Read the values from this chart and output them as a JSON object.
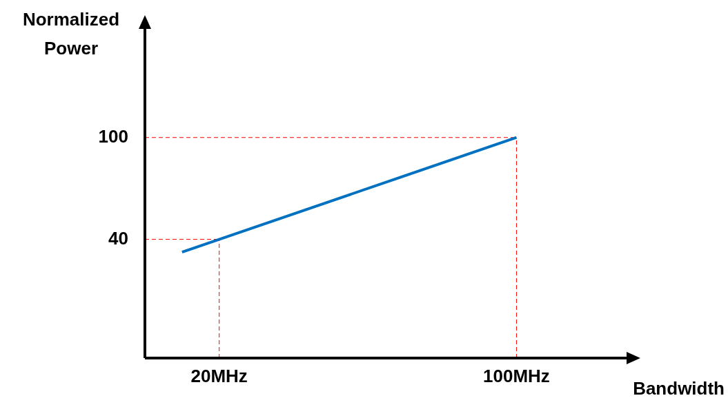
{
  "chart_data": {
    "type": "line",
    "xlabel": "Bandwidth",
    "ylabel": "Normalized Power",
    "x": [
      10,
      20,
      100
    ],
    "series": [
      {
        "color": "#0070c0",
        "values": [
          32.5,
          40,
          100
        ]
      }
    ],
    "xlim": [
      0,
      130
    ],
    "ylim": [
      -30,
      165
    ],
    "xticks": [
      {
        "value": 20,
        "label": "20MHz"
      },
      {
        "value": 100,
        "label": "100MHz"
      }
    ],
    "yticks": [
      40,
      100
    ],
    "grid": false,
    "legend": false,
    "marker": "none",
    "line_style": "solid",
    "ref_lines": [
      {
        "axis": "x",
        "value": 20,
        "color": "#ff0000",
        "line_style": "dashed"
      },
      {
        "axis": "y",
        "value": 40,
        "color": "#ff0000",
        "line_style": "dashed"
      },
      {
        "axis": "x",
        "value": 100,
        "color": "#ff0000",
        "line_style": "dashed"
      },
      {
        "axis": "y",
        "value": 100,
        "color": "#ff0000",
        "line_style": "dashed"
      }
    ]
  }
}
